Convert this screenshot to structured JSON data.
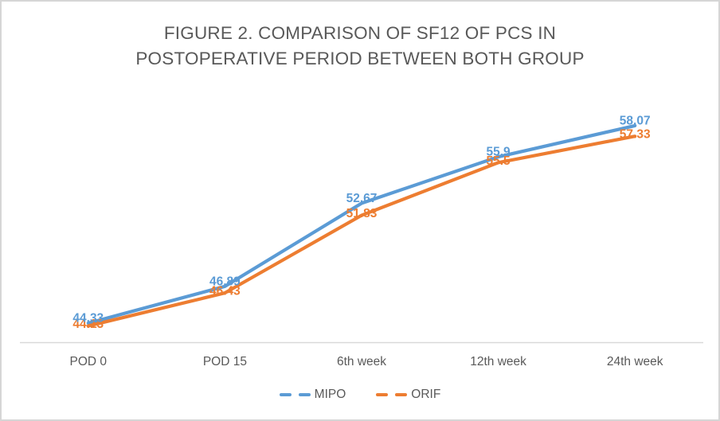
{
  "colors": {
    "title_text": "#595959",
    "axis_label_text": "#595959",
    "axis_line": "#d9d9d9",
    "frame_border": "#d6d6d6",
    "background": "#ffffff"
  },
  "chart_data": {
    "type": "line",
    "title": "FIGURE 2. COMPARISON OF SF12 OF PCS IN POSTOPERATIVE PERIOD BETWEEN BOTH GROUP",
    "title_lines": [
      "FIGURE 2. COMPARISON OF SF12 OF PCS IN",
      "POSTOPERATIVE PERIOD BETWEEN BOTH GROUP"
    ],
    "categories": [
      "POD 0",
      "POD 15",
      "6th week",
      "12th week",
      "24th week"
    ],
    "series": [
      {
        "name": "MIPO",
        "color": "#5B9BD5",
        "values": [
          44.33,
          46.89,
          52.67,
          55.9,
          58.07
        ],
        "labels": [
          "44.33",
          "46.89",
          "52.67",
          "55.9",
          "58.07"
        ]
      },
      {
        "name": "ORIF",
        "color": "#ED7D31",
        "values": [
          44.13,
          46.43,
          51.83,
          55.5,
          57.33
        ],
        "labels": [
          "44.13",
          "46.43",
          "51.83",
          "55.5",
          "57.33"
        ]
      }
    ],
    "xlabel": "",
    "ylabel": "",
    "ylim": [
      43,
      60.5
    ],
    "grid": false,
    "y_axis_visible": false,
    "data_labels": true,
    "legend_position": "bottom"
  }
}
